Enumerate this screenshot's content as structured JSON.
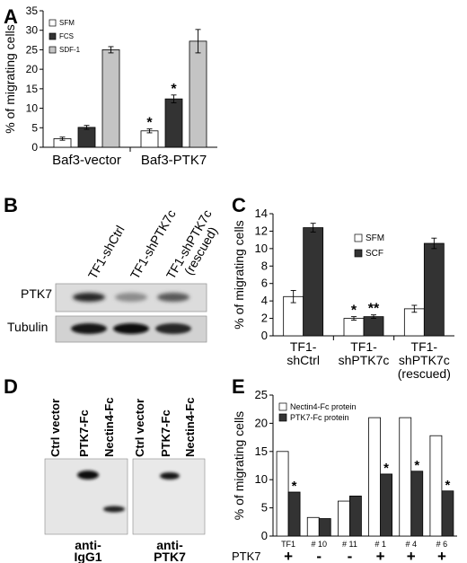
{
  "panels": {
    "A": "A",
    "B": "B",
    "C": "C",
    "D": "D",
    "E": "E"
  },
  "chart_data": [
    {
      "panel": "A",
      "type": "bar",
      "ylabel": "% of migrating cells",
      "ylim": [
        0,
        35
      ],
      "yticks": [
        0,
        5,
        10,
        15,
        20,
        25,
        30,
        35
      ],
      "categories": [
        "Baf3-vector",
        "Baf3-PTK7"
      ],
      "legend_position": "top-left",
      "series": [
        {
          "name": "SFM",
          "color": "#ffffff",
          "values": [
            2.2,
            4.2
          ],
          "errors": [
            0.4,
            0.5
          ],
          "sig": [
            "",
            "*"
          ]
        },
        {
          "name": "FCS",
          "color": "#333333",
          "values": [
            5.1,
            12.4
          ],
          "errors": [
            0.5,
            1.0
          ],
          "sig": [
            "",
            "*"
          ]
        },
        {
          "name": "SDF-1",
          "color": "#c4c4c4",
          "values": [
            25.0,
            27.2
          ],
          "errors": [
            0.8,
            3.0
          ],
          "sig": [
            "",
            ""
          ]
        }
      ]
    },
    {
      "panel": "C",
      "type": "bar",
      "ylabel": "% of migrating cells",
      "ylim": [
        0,
        14
      ],
      "yticks": [
        0,
        2,
        4,
        6,
        8,
        10,
        12,
        14
      ],
      "categories": [
        "TF1-\nshCtrl",
        "TF1-\nshPTK7c",
        "TF1-\nshPTK7c\n(rescued)"
      ],
      "legend_position": "top-center",
      "series": [
        {
          "name": "SFM",
          "color": "#ffffff",
          "values": [
            4.5,
            2.0,
            3.1
          ],
          "errors": [
            0.7,
            0.2,
            0.4
          ],
          "sig": [
            "",
            "*",
            ""
          ]
        },
        {
          "name": "SCF",
          "color": "#333333",
          "values": [
            12.4,
            2.2,
            10.6
          ],
          "errors": [
            0.5,
            0.2,
            0.6
          ],
          "sig": [
            "",
            "**",
            ""
          ]
        }
      ]
    },
    {
      "panel": "E",
      "type": "bar",
      "ylabel": "% of migrating cells",
      "ylim": [
        0,
        25
      ],
      "yticks": [
        0,
        5,
        10,
        15,
        20,
        25
      ],
      "categories": [
        "TF1",
        "# 10",
        "# 11",
        "# 1",
        "# 4",
        "# 6"
      ],
      "row_label": "PTK7",
      "ptk7_status": [
        "+",
        "-",
        "-",
        "+",
        "+",
        "+"
      ],
      "legend_position": "top-left",
      "series": [
        {
          "name": "Nectin4-Fc protein",
          "color": "#ffffff",
          "values": [
            15.0,
            3.3,
            6.2,
            21.0,
            21.0,
            17.8
          ],
          "sig": [
            "",
            "",
            "",
            "",
            "",
            ""
          ]
        },
        {
          "name": "PTK7-Fc protein",
          "color": "#333333",
          "values": [
            7.8,
            3.1,
            7.1,
            11.0,
            11.5,
            8.0
          ],
          "sig": [
            "*",
            "",
            "",
            "*",
            "*",
            "*"
          ]
        }
      ]
    }
  ],
  "blot_B": {
    "lanes": [
      "TF1-shCtrl",
      "TF1-shPTK7c",
      "TF1-shPTK7c\n(rescued)"
    ],
    "rows": [
      "PTK7",
      "Tubulin"
    ],
    "ptk7_intensity": [
      0.85,
      0.45,
      0.65
    ],
    "tubulin_intensity": [
      0.9,
      0.95,
      0.85
    ]
  },
  "blot_D": {
    "lanes": [
      "Ctrl vector",
      "PTK7-Fc",
      "Nectin4-Fc"
    ],
    "antibodies": [
      "anti-\nIgG1",
      "anti-\nPTK7"
    ]
  }
}
